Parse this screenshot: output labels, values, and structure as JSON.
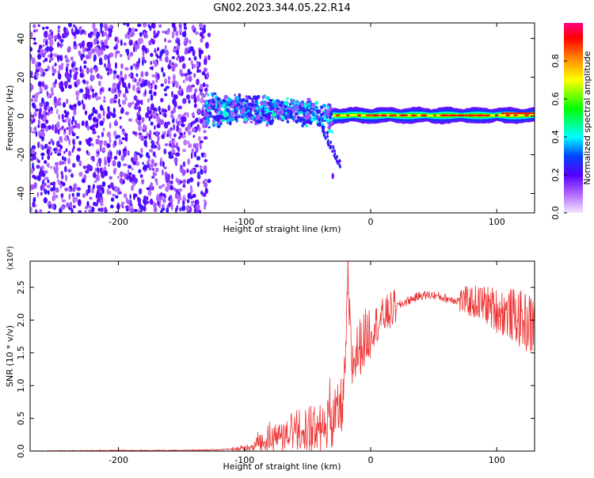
{
  "title": "GN02.2023.344.05.22.R14",
  "chart_data": [
    {
      "type": "heatmap",
      "xlabel": "Height of straight line (km)",
      "ylabel": "Frequency (Hz)",
      "xlim": [
        -270,
        130
      ],
      "ylim": [
        -50,
        48
      ],
      "xticks": [
        -200,
        -100,
        0,
        100
      ],
      "yticks": [
        -40,
        -20,
        0,
        20,
        40
      ],
      "grid": false,
      "colorbar": {
        "label": "Normalized spectral amplitude",
        "range": [
          0.0,
          1.0
        ],
        "ticks": [
          0.0,
          0.2,
          0.4,
          0.6,
          0.8
        ],
        "colormap": [
          "#f2e6ff",
          "#7f00ff",
          "#0000ff",
          "#00ffff",
          "#00ff00",
          "#ffff00",
          "#ff8000",
          "#ff0000",
          "#ff0080"
        ]
      },
      "regions": [
        {
          "x": [
            -270,
            -130
          ],
          "f_center": 0,
          "f_half_width": 48,
          "amplitude": 0.15
        },
        {
          "x": [
            -130,
            -30
          ],
          "f_center": 2,
          "f_half_width": 8,
          "amplitude": 0.4
        },
        {
          "x": [
            -30,
            130
          ],
          "f_center": 0,
          "f_half_width": 2,
          "amplitude": 0.9
        }
      ]
    },
    {
      "type": "line",
      "xlabel": "Height of straight line (km)",
      "ylabel": "SNR (10 * v/v)",
      "y_multiplier": "(x10⁴)",
      "xlim": [
        -270,
        130
      ],
      "ylim": [
        0,
        2.9
      ],
      "xticks": [
        -200,
        -100,
        0,
        100
      ],
      "yticks": [
        0.0,
        0.5,
        1.0,
        1.5,
        2.0,
        2.5
      ],
      "grid": false,
      "series": [
        {
          "color": "#ee3333",
          "x": [
            -270,
            -200,
            -150,
            -120,
            -100,
            -90,
            -80,
            -70,
            -60,
            -50,
            -40,
            -30,
            -25,
            -20,
            -18,
            -15,
            -10,
            -5,
            0,
            10,
            20,
            30,
            40,
            50,
            60,
            70,
            80,
            90,
            100,
            110,
            120,
            130
          ],
          "y": [
            0.0,
            0.01,
            0.01,
            0.02,
            0.05,
            0.12,
            0.18,
            0.28,
            0.35,
            0.38,
            0.4,
            0.45,
            0.6,
            0.9,
            2.5,
            1.3,
            1.55,
            1.7,
            1.85,
            2.05,
            2.2,
            2.3,
            2.38,
            2.38,
            2.33,
            2.3,
            2.28,
            2.25,
            2.15,
            2.1,
            2.0,
            1.9
          ]
        }
      ]
    }
  ]
}
